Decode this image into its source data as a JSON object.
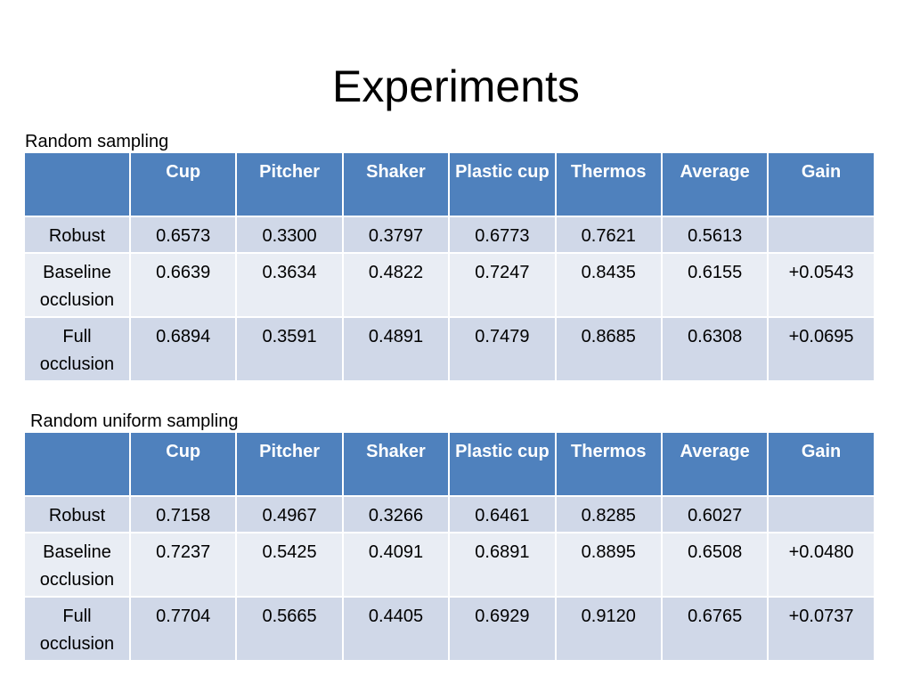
{
  "title": "Experiments",
  "sections": [
    {
      "caption": "Random sampling",
      "columns": [
        "",
        "Cup",
        "Pitcher",
        "Shaker",
        "Plastic cup",
        "Thermos",
        "Average",
        "Gain"
      ],
      "rows": [
        [
          "Robust",
          "0.6573",
          "0.3300",
          "0.3797",
          "0.6773",
          "0.7621",
          "0.5613",
          ""
        ],
        [
          "Baseline occlusion",
          "0.6639",
          "0.3634",
          "0.4822",
          "0.7247",
          "0.8435",
          "0.6155",
          "+0.0543"
        ],
        [
          "Full occlusion",
          "0.6894",
          "0.3591",
          "0.4891",
          "0.7479",
          "0.8685",
          "0.6308",
          "+0.0695"
        ]
      ]
    },
    {
      "caption": "Random uniform sampling",
      "columns": [
        "",
        "Cup",
        "Pitcher",
        "Shaker",
        "Plastic cup",
        "Thermos",
        "Average",
        "Gain"
      ],
      "rows": [
        [
          "Robust",
          "0.7158",
          "0.4967",
          "0.3266",
          "0.6461",
          "0.8285",
          "0.6027",
          ""
        ],
        [
          "Baseline occlusion",
          "0.7237",
          "0.5425",
          "0.4091",
          "0.6891",
          "0.8895",
          "0.6508",
          "+0.0480"
        ],
        [
          "Full occlusion",
          "0.7704",
          "0.5665",
          "0.4405",
          "0.6929",
          "0.9120",
          "0.6765",
          "+0.0737"
        ]
      ]
    }
  ],
  "colors": {
    "header_bg": "#4f81bd",
    "row_odd_bg": "#d0d8e8",
    "row_even_bg": "#e9edf4"
  }
}
